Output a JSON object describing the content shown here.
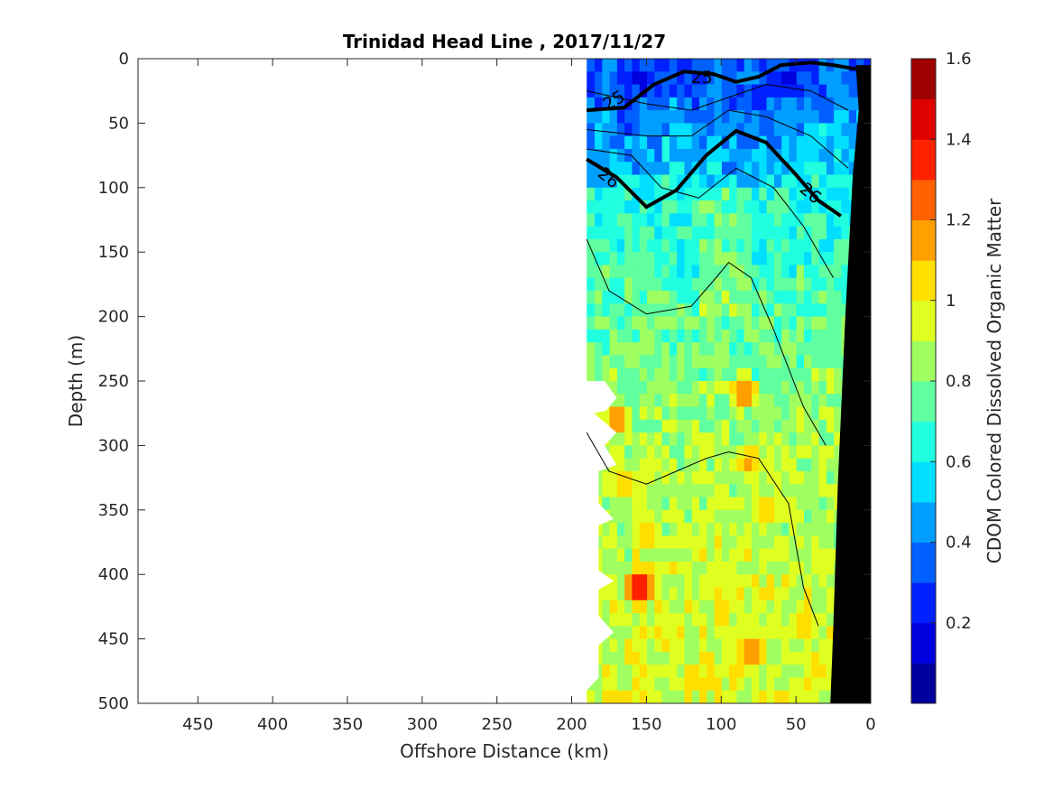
{
  "chart_data": {
    "type": "heatmap",
    "title": "Trinidad Head Line , 2017/11/27",
    "xlabel": "Offshore Distance (km)",
    "ylabel": "Depth (m)",
    "xlim": [
      490,
      0
    ],
    "ylim": [
      0,
      500
    ],
    "x_reversed": true,
    "y_reversed": true,
    "x_ticks": [
      450,
      400,
      350,
      300,
      250,
      200,
      150,
      100,
      50,
      0
    ],
    "y_ticks": [
      0,
      50,
      100,
      150,
      200,
      250,
      300,
      350,
      400,
      450,
      500
    ],
    "colorbar": {
      "label": "CDOM Colored Dissolved Organic Matter",
      "min": 0.0,
      "max": 1.6,
      "ticks": [
        0.2,
        0.4,
        0.6,
        0.8,
        1,
        1.2,
        1.4,
        1.6
      ],
      "tick_labels": [
        "0.2",
        "0.4",
        "0.6",
        "0.8",
        "1",
        "1.2",
        "1.4",
        "1.6"
      ],
      "levels": 16,
      "colormap": "jet"
    },
    "data_extent_km": [
      190,
      10
    ],
    "bathymetry_color": "#000000",
    "contours": [
      {
        "level": 25,
        "label": "25",
        "bold": true,
        "depth_by_distance": [
          [
            190,
            40
          ],
          [
            165,
            38
          ],
          [
            145,
            20
          ],
          [
            125,
            10
          ],
          [
            105,
            12
          ],
          [
            90,
            18
          ],
          [
            75,
            14
          ],
          [
            60,
            5
          ],
          [
            40,
            3
          ],
          [
            25,
            5
          ],
          [
            10,
            8
          ]
        ]
      },
      {
        "level": 26,
        "label": "26",
        "bold": true,
        "depth_by_distance": [
          [
            190,
            78
          ],
          [
            170,
            92
          ],
          [
            150,
            115
          ],
          [
            130,
            102
          ],
          [
            110,
            75
          ],
          [
            90,
            56
          ],
          [
            70,
            65
          ],
          [
            50,
            90
          ],
          [
            35,
            110
          ],
          [
            20,
            122
          ]
        ]
      }
    ],
    "thin_contours": [
      [
        [
          190,
          25
        ],
        [
          150,
          35
        ],
        [
          120,
          40
        ],
        [
          95,
          30
        ],
        [
          70,
          20
        ],
        [
          40,
          25
        ],
        [
          15,
          40
        ]
      ],
      [
        [
          190,
          55
        ],
        [
          150,
          60
        ],
        [
          120,
          60
        ],
        [
          95,
          40
        ],
        [
          70,
          45
        ],
        [
          40,
          60
        ],
        [
          15,
          85
        ]
      ],
      [
        [
          190,
          70
        ],
        [
          160,
          75
        ],
        [
          140,
          100
        ],
        [
          115,
          108
        ],
        [
          90,
          85
        ],
        [
          65,
          100
        ],
        [
          45,
          130
        ],
        [
          25,
          170
        ]
      ],
      [
        [
          190,
          140
        ],
        [
          175,
          180
        ],
        [
          150,
          198
        ],
        [
          120,
          192
        ],
        [
          105,
          172
        ],
        [
          95,
          158
        ],
        [
          80,
          170
        ],
        [
          65,
          210
        ],
        [
          45,
          270
        ],
        [
          30,
          300
        ]
      ],
      [
        [
          190,
          290
        ],
        [
          175,
          320
        ],
        [
          150,
          330
        ],
        [
          110,
          310
        ],
        [
          95,
          305
        ],
        [
          75,
          310
        ],
        [
          55,
          345
        ],
        [
          45,
          410
        ],
        [
          35,
          440
        ]
      ]
    ],
    "hotspots": [
      {
        "x": 155,
        "y": 410,
        "v": 1.45
      },
      {
        "x": 85,
        "y": 258,
        "v": 1.3
      },
      {
        "x": 82,
        "y": 312,
        "v": 1.25
      },
      {
        "x": 110,
        "y": 300,
        "v": 1.1
      },
      {
        "x": 70,
        "y": 350,
        "v": 1.2
      },
      {
        "x": 80,
        "y": 460,
        "v": 1.3
      },
      {
        "x": 170,
        "y": 280,
        "v": 1.25
      },
      {
        "x": 165,
        "y": 330,
        "v": 1.2
      },
      {
        "x": 150,
        "y": 370,
        "v": 1.2
      },
      {
        "x": 45,
        "y": 440,
        "v": 1.2
      },
      {
        "x": 120,
        "y": 480,
        "v": 1.15
      },
      {
        "x": 60,
        "y": 500,
        "v": 1.2
      },
      {
        "x": 130,
        "y": 450,
        "v": 1.1
      },
      {
        "x": 30,
        "y": 460,
        "v": 1.1
      },
      {
        "x": 100,
        "y": 400,
        "v": 1.05
      }
    ]
  }
}
